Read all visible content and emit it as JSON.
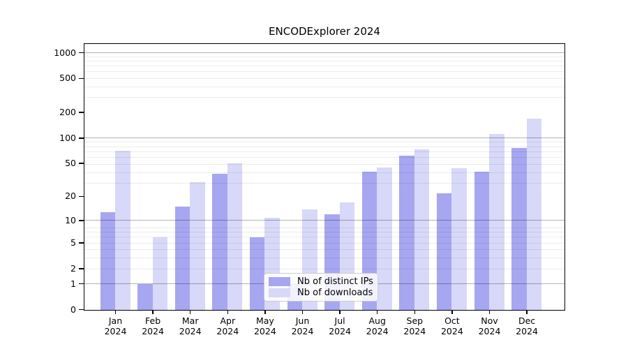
{
  "title": "ENCODExplorer 2024",
  "x_axis": {
    "months": [
      "Jan",
      "Feb",
      "Mar",
      "Apr",
      "May",
      "Jun",
      "Jul",
      "Aug",
      "Sep",
      "Oct",
      "Nov",
      "Dec"
    ],
    "year": "2024"
  },
  "chart_data": {
    "type": "bar",
    "title": "ENCODExplorer 2024",
    "categories": [
      "Jan 2024",
      "Feb 2024",
      "Mar 2024",
      "Apr 2024",
      "May 2024",
      "Jun 2024",
      "Jul 2024",
      "Aug 2024",
      "Sep 2024",
      "Oct 2024",
      "Nov 2024",
      "Dec 2024"
    ],
    "series": [
      {
        "name": "Nb of distinct IPs",
        "color": "#a6a6f1",
        "values": [
          13,
          1,
          15,
          38,
          6,
          1,
          12,
          40,
          62,
          22,
          40,
          77
        ]
      },
      {
        "name": "Nb of downloads",
        "color": "#d8d8f8",
        "values": [
          71,
          6,
          30,
          51,
          11,
          14,
          17,
          45,
          74,
          44,
          112,
          170
        ]
      }
    ],
    "xlabel": "",
    "ylabel": "",
    "yscale": "log10(value+1)",
    "yticks": [
      0,
      1,
      2,
      5,
      10,
      20,
      50,
      100,
      200,
      500,
      1000
    ],
    "ylim": [
      0,
      1258
    ],
    "grid": "horizontal",
    "grid_major_at": [
      1,
      10,
      100,
      1000
    ],
    "legend_position": "lower center inside plot"
  },
  "colors": {
    "grid_major": "#b2b2b2",
    "grid_minor": "#ebebeb",
    "axis": "#000000",
    "background": "#ffffff"
  }
}
